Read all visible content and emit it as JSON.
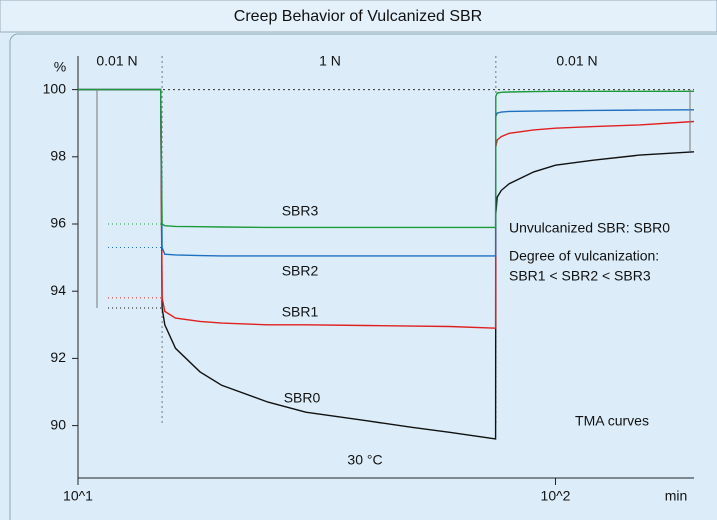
{
  "chart_data": {
    "type": "line",
    "title": "Creep Behavior of Vulcanized SBR",
    "ylabel": "%",
    "xlabel": "min",
    "log_x": true,
    "xlim": [
      10,
      195
    ],
    "xticks": [
      {
        "value": 10,
        "label": "10^1"
      },
      {
        "value": 100,
        "label": "10^2"
      }
    ],
    "ylim": [
      88.5,
      101
    ],
    "yticks": [
      90,
      92,
      94,
      96,
      98,
      100
    ],
    "x": [
      10,
      14.9,
      15,
      15.2,
      16,
      18,
      20,
      25,
      30,
      40,
      50,
      60,
      74.9,
      75,
      75.5,
      77,
      80,
      90,
      100,
      120,
      150,
      195
    ],
    "series": [
      {
        "name": "SBR0",
        "color": "#111111",
        "values": [
          100,
          100,
          93.5,
          93.0,
          92.3,
          91.6,
          91.2,
          90.7,
          90.4,
          90.15,
          89.95,
          89.8,
          89.6,
          96.3,
          96.8,
          97.0,
          97.2,
          97.55,
          97.75,
          97.9,
          98.05,
          98.15
        ]
      },
      {
        "name": "SBR1",
        "color": "#e02020",
        "values": [
          100,
          100,
          93.8,
          93.4,
          93.2,
          93.1,
          93.05,
          93.0,
          93.0,
          92.98,
          92.96,
          92.95,
          92.9,
          98.3,
          98.5,
          98.6,
          98.7,
          98.8,
          98.85,
          98.9,
          98.95,
          99.05
        ]
      },
      {
        "name": "SBR2",
        "color": "#1f6fc0",
        "values": [
          100,
          100,
          95.3,
          95.1,
          95.08,
          95.06,
          95.05,
          95.05,
          95.05,
          95.05,
          95.05,
          95.05,
          95.05,
          99.2,
          99.3,
          99.33,
          99.35,
          99.36,
          99.37,
          99.38,
          99.39,
          99.4
        ]
      },
      {
        "name": "SBR3",
        "color": "#1a9a3a",
        "values": [
          100,
          100,
          96.0,
          95.95,
          95.93,
          95.92,
          95.91,
          95.9,
          95.9,
          95.9,
          95.9,
          95.9,
          95.9,
          99.8,
          99.9,
          99.92,
          99.93,
          99.94,
          99.95,
          99.95,
          99.95,
          99.95
        ]
      }
    ],
    "annotations": [
      "0.01 N",
      "1 N",
      "0.01 N",
      "Unvulcanized SBR: SBR0",
      "Degree of vulcanization:",
      "SBR1 < SBR2 < SBR3",
      "TMA curves",
      "30 °C"
    ]
  }
}
